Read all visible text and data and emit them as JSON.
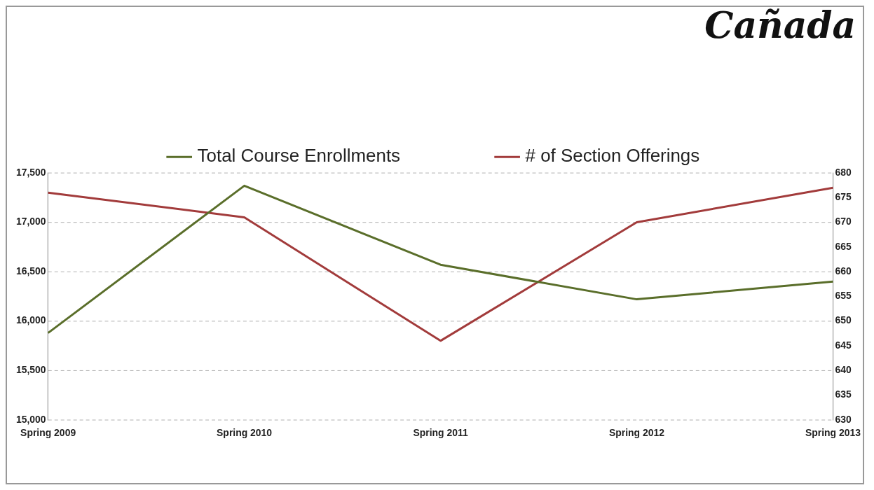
{
  "chart_data": {
    "type": "line",
    "title": "Cañada",
    "categories": [
      "Spring 2009",
      "Spring 2010",
      "Spring 2011",
      "Spring 2012",
      "Spring 2013"
    ],
    "series": [
      {
        "name": "Total Course Enrollments",
        "color": "#5a6e2a",
        "values": [
          15880,
          17370,
          16570,
          16220,
          16400
        ]
      },
      {
        "name": "# of Section Offerings",
        "color": "#a23b3b",
        "values": [
          676,
          671,
          646,
          670,
          677
        ],
        "axis": "y2"
      }
    ],
    "ylim": [
      15000,
      17500
    ],
    "yticks": [
      {
        "value": 15000,
        "label": "15,000"
      },
      {
        "value": 15500,
        "label": "15,500"
      },
      {
        "value": 16000,
        "label": "16,000"
      },
      {
        "value": 16500,
        "label": "16,500"
      },
      {
        "value": 17000,
        "label": "17,000"
      },
      {
        "value": 17500,
        "label": "17,500"
      }
    ],
    "y2lim": [
      630,
      680
    ],
    "y2ticks": [
      630,
      635,
      640,
      645,
      650,
      655,
      660,
      665,
      670,
      675,
      680
    ],
    "grid": "y",
    "legend": "top",
    "marker": "none"
  }
}
